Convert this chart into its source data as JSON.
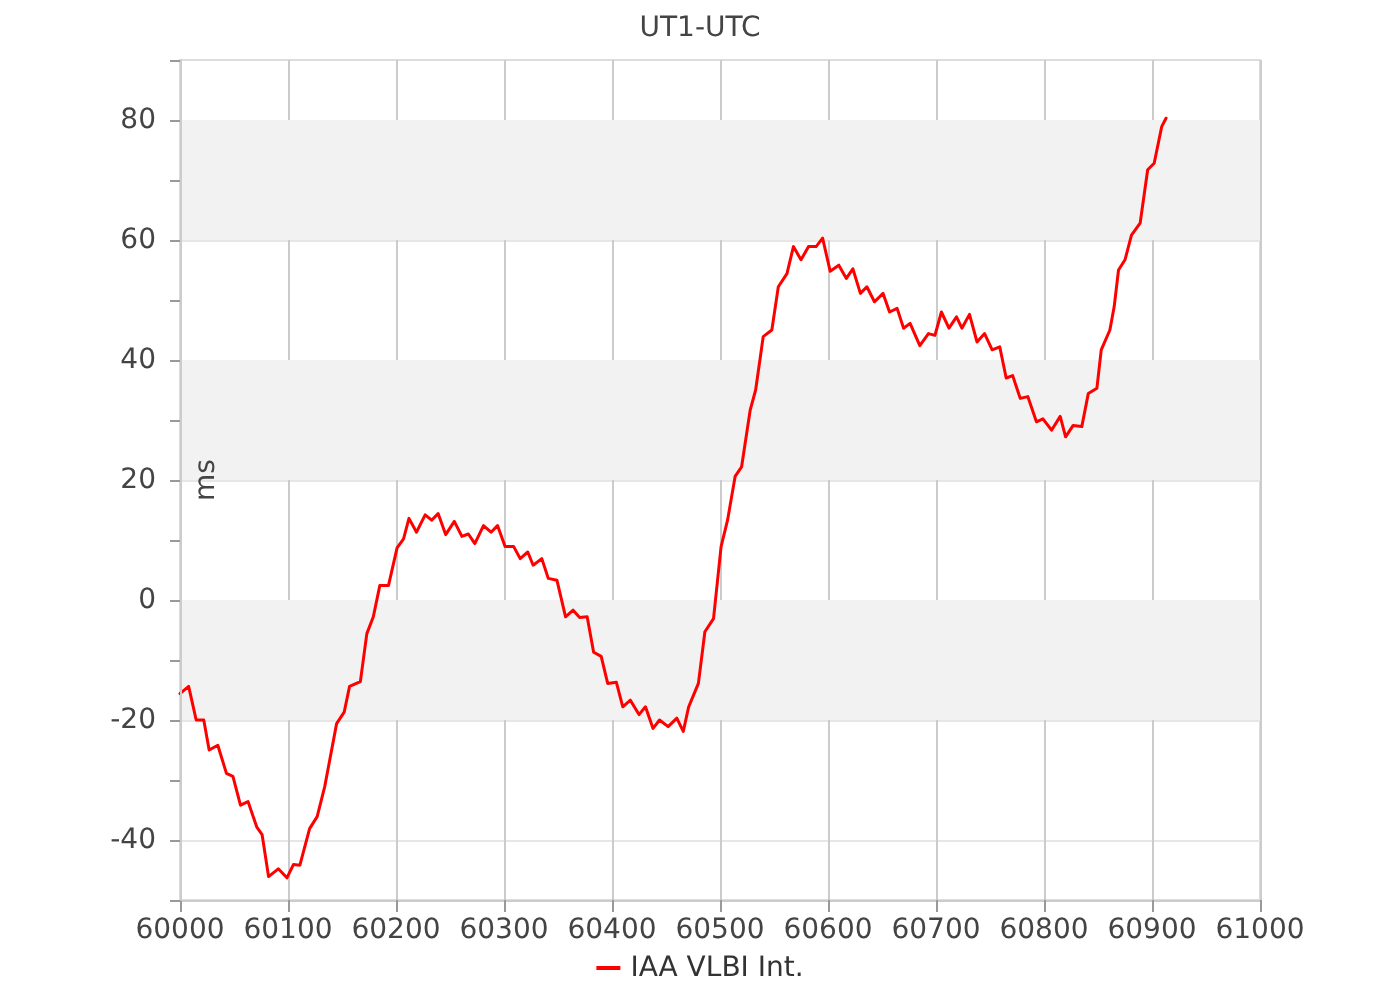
{
  "chart_data": {
    "type": "line",
    "title": "UT1-UTC",
    "ylabel": "ms",
    "x": [
      60000,
      60008,
      60015,
      60022,
      60027,
      60035,
      60043,
      60049,
      60056,
      60063,
      60071,
      60076,
      60082,
      60091,
      60099,
      60105,
      60111,
      60120,
      60127,
      60134,
      60145,
      60152,
      60157,
      60167,
      60173,
      60179,
      60185,
      60193,
      60201,
      60207,
      60212,
      60219,
      60227,
      60233,
      60239,
      60246,
      60254,
      60261,
      60267,
      60273,
      60281,
      60288,
      60294,
      60301,
      60309,
      60315,
      60322,
      60327,
      60335,
      60341,
      60349,
      60357,
      60364,
      60370,
      60377,
      60383,
      60390,
      60396,
      60404,
      60410,
      60417,
      60425,
      60431,
      60438,
      60444,
      60452,
      60460,
      60466,
      60471,
      60480,
      60486,
      60494,
      60501,
      60507,
      60514,
      60520,
      60528,
      60533,
      60540,
      60548,
      60554,
      60562,
      60568,
      60575,
      60582,
      60589,
      60595,
      60602,
      60610,
      60617,
      60623,
      60630,
      60636,
      60643,
      60651,
      60657,
      60664,
      60670,
      60676,
      60685,
      60693,
      60699,
      60705,
      60712,
      60719,
      60724,
      60731,
      60738,
      60745,
      60752,
      60759,
      60765,
      60771,
      60778,
      60785,
      60793,
      60799,
      60807,
      60815,
      60820,
      60827,
      60835,
      60841,
      60849,
      60853,
      60861,
      60865,
      60869,
      60875,
      60881,
      60889,
      60896,
      60902,
      60909,
      60913
    ],
    "series": [
      {
        "name": "IAA VLBI Int.",
        "color": "#ff0000",
        "values": [
          -15.6,
          -14.4,
          -20,
          -20,
          -25,
          -24.2,
          -28.9,
          -29.4,
          -34.2,
          -33.6,
          -37.8,
          -39.1,
          -46.1,
          -44.8,
          -46.3,
          -44.1,
          -44.2,
          -38.1,
          -36.1,
          -31.1,
          -20.6,
          -18.7,
          -14.4,
          -13.6,
          -5.6,
          -2.8,
          2.4,
          2.4,
          8.7,
          10.2,
          13.6,
          11.3,
          14.2,
          13.3,
          14.4,
          10.9,
          13.1,
          10.6,
          11,
          9.4,
          12.4,
          11.3,
          12.4,
          8.9,
          8.9,
          6.9,
          8,
          5.8,
          6.9,
          3.6,
          3.3,
          -2.8,
          -1.7,
          -2.9,
          -2.8,
          -8.7,
          -9.4,
          -13.9,
          -13.7,
          -17.8,
          -16.7,
          -19.1,
          -17.8,
          -21.4,
          -20,
          -21.1,
          -19.7,
          -21.9,
          -17.8,
          -13.9,
          -5.3,
          -3.1,
          8.9,
          13.3,
          20.6,
          22.2,
          31.7,
          35,
          43.9,
          45,
          52.2,
          54.4,
          58.9,
          56.7,
          58.9,
          58.9,
          60.3,
          54.8,
          55.8,
          53.6,
          55.2,
          51.1,
          52.2,
          49.7,
          51.1,
          48,
          48.6,
          45.3,
          46.1,
          42.4,
          44.4,
          44.1,
          48,
          45.3,
          47.2,
          45.3,
          47.6,
          43,
          44.4,
          41.7,
          42.2,
          37,
          37.4,
          33.6,
          33.9,
          29.7,
          30.2,
          28.3,
          30.6,
          27.2,
          29.1,
          28.9,
          34.4,
          35.3,
          41.7,
          45,
          48.9,
          55,
          56.7,
          60.8,
          62.8,
          71.7,
          72.8,
          78.9,
          80.3
        ]
      }
    ],
    "xlim": [
      60000,
      61000
    ],
    "xticks": [
      60000,
      60100,
      60200,
      60300,
      60400,
      60500,
      60600,
      60700,
      60800,
      60900,
      61000
    ],
    "ylim": [
      -50,
      90
    ],
    "yticks": [
      {
        "value": -50,
        "label": null
      },
      -40,
      {
        "value": -30,
        "label": null
      },
      -20,
      {
        "value": -10,
        "label": null
      },
      0,
      {
        "value": 10,
        "label": null
      },
      20,
      {
        "value": 30,
        "label": null
      },
      40,
      {
        "value": 50,
        "label": null
      },
      60,
      {
        "value": 70,
        "label": null
      },
      80,
      {
        "value": 90,
        "label": null
      }
    ],
    "bands": [
      {
        "axis": "y",
        "from": -20,
        "to": 0,
        "color": "#f2f2f2"
      },
      {
        "axis": "y",
        "from": 20,
        "to": 40,
        "color": "#f2f2f2"
      },
      {
        "axis": "y",
        "from": 60,
        "to": 80,
        "color": "#f2f2f2"
      }
    ],
    "grid": true,
    "legend": "bottom",
    "marker": "none",
    "line_style": "solid"
  }
}
